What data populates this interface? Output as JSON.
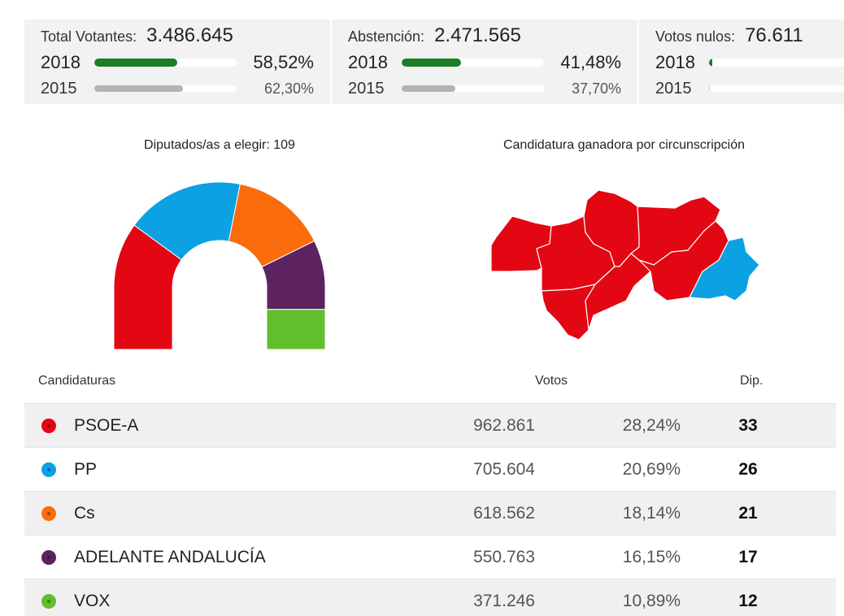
{
  "stats": [
    {
      "label": "Total Votantes:",
      "value": "3.486.645",
      "y2018": {
        "year": "2018",
        "pct": "58,52%",
        "fill": 0.5852
      },
      "y2015": {
        "year": "2015",
        "pct": "62,30%",
        "fill": 0.623
      }
    },
    {
      "label": "Abstención:",
      "value": "2.471.565",
      "y2018": {
        "year": "2018",
        "pct": "41,48%",
        "fill": 0.4148
      },
      "y2015": {
        "year": "2015",
        "pct": "37,70%",
        "fill": 0.377
      }
    },
    {
      "label": "Votos nulos:",
      "value": "76.611",
      "y2018": {
        "year": "2018",
        "pct": "",
        "fill": 0.0219
      },
      "y2015": {
        "year": "2015",
        "pct": "",
        "fill": 0.008
      }
    }
  ],
  "parliament": {
    "caption": "Diputados/as a elegir: 109",
    "total_seats": 109
  },
  "map": {
    "caption": "Candidatura ganadora por circunscripción"
  },
  "table": {
    "headers": {
      "candidaturas": "Candidaturas",
      "votos": "Votos",
      "dip": "Dip."
    },
    "rows": [
      {
        "name": "PSOE-A",
        "votes": "962.861",
        "pct": "28,24%",
        "seats": "33",
        "color": "#e30613"
      },
      {
        "name": "PP",
        "votes": "705.604",
        "pct": "20,69%",
        "seats": "26",
        "color": "#0ba1e2"
      },
      {
        "name": "Cs",
        "votes": "618.562",
        "pct": "18,14%",
        "seats": "21",
        "color": "#fa6b0c"
      },
      {
        "name": "ADELANTE ANDALUCÍA",
        "votes": "550.763",
        "pct": "16,15%",
        "seats": "17",
        "color": "#5d2260"
      },
      {
        "name": "VOX",
        "votes": "371.246",
        "pct": "10,89%",
        "seats": "12",
        "color": "#63be2e"
      }
    ]
  }
}
